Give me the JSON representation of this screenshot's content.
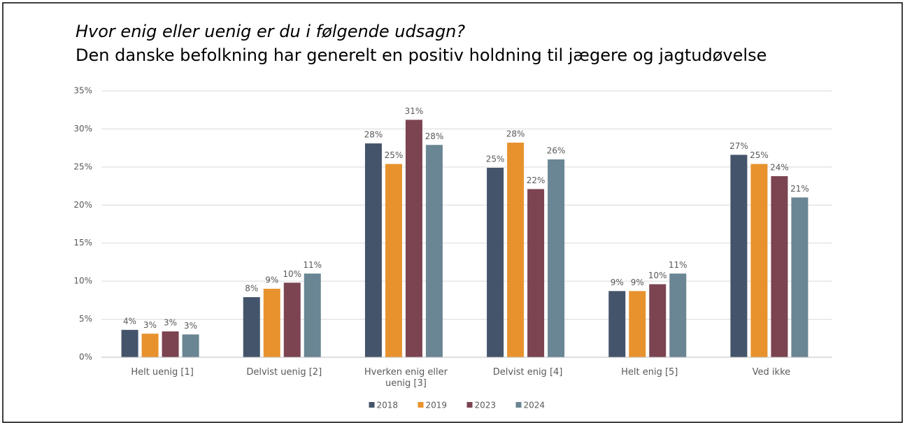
{
  "chart_data": {
    "type": "bar",
    "title": "Hvor enig eller uenig er du i følgende udsagn?",
    "subtitle": "Den danske befolkning har generelt en positiv holdning til jægere og jagtudøvelse",
    "categories": [
      "Helt uenig [1]",
      "Delvist uenig [2]",
      "Hverken enig eller uenig [3]",
      "Delvist enig [4]",
      "Helt enig [5]",
      "Ved ikke"
    ],
    "series": [
      {
        "name": "2018",
        "color": "#44546a",
        "values": [
          3.6,
          7.9,
          28.1,
          24.9,
          8.7,
          26.6
        ],
        "value_labels": [
          "4%",
          "8%",
          "28%",
          "25%",
          "9%",
          "27%"
        ]
      },
      {
        "name": "2019",
        "color": "#e8922e",
        "values": [
          3.1,
          9.0,
          25.4,
          28.2,
          8.7,
          25.4
        ],
        "value_labels": [
          "3%",
          "9%",
          "25%",
          "28%",
          "9%",
          "25%"
        ]
      },
      {
        "name": "2023",
        "color": "#7b4450",
        "values": [
          3.4,
          9.8,
          31.2,
          22.1,
          9.6,
          23.8
        ],
        "value_labels": [
          "3%",
          "10%",
          "31%",
          "22%",
          "10%",
          "24%"
        ]
      },
      {
        "name": "2024",
        "color": "#6a8593",
        "values": [
          3.0,
          11.0,
          27.9,
          26.0,
          11.0,
          21.0
        ],
        "value_labels": [
          "3%",
          "11%",
          "28%",
          "26%",
          "11%",
          "21%"
        ]
      }
    ],
    "ylim": [
      0,
      35
    ],
    "yticks": [
      {
        "value": 0,
        "label": "0%"
      },
      {
        "value": 5,
        "label": "5%"
      },
      {
        "value": 10,
        "label": "10%"
      },
      {
        "value": 15,
        "label": "15%"
      },
      {
        "value": 20,
        "label": "20%"
      },
      {
        "value": 25,
        "label": "25%"
      },
      {
        "value": 30,
        "label": "30%"
      },
      {
        "value": 35,
        "label": "35%"
      }
    ],
    "grid": true,
    "legend": "bottom"
  }
}
